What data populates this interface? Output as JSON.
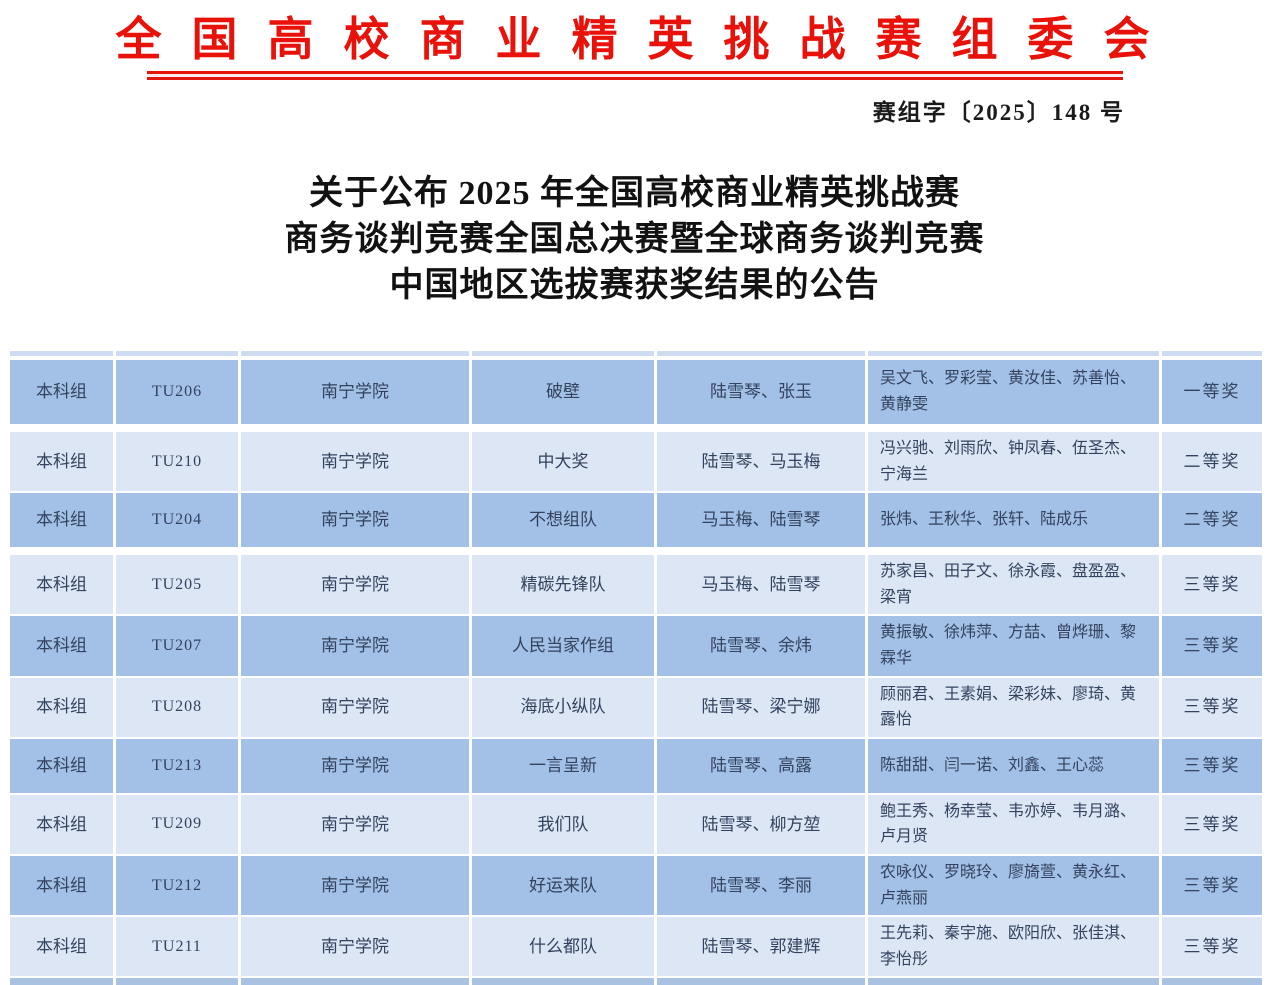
{
  "header": {
    "org_title": "全国高校商业精英挑战赛组委会",
    "doc_number": "赛组字〔2025〕148 号"
  },
  "announcement_title": {
    "lines": [
      "关于公布 2025 年全国高校商业精英挑战赛",
      "商务谈判竞赛全国总决赛暨全球商务谈判竞赛",
      "中国地区选拔赛获奖结果的公告"
    ]
  },
  "colors": {
    "accent_red": "#e8120a",
    "row_dark": "#a3c0e7",
    "row_light": "#dce6f5",
    "table_text": "#33425e"
  },
  "table": {
    "rows": [
      {
        "group": "本科组",
        "team_code": "TU206",
        "school": "南宁学院",
        "team_name": "破壁",
        "teachers": "陆雪琴、张玉",
        "members": "吴文飞、罗彩莹、黄汝佳、苏善怡、黄静雯",
        "award": "一等奖",
        "shade": "dark",
        "tall": true,
        "gap_after": true
      },
      {
        "group": "本科组",
        "team_code": "TU210",
        "school": "南宁学院",
        "team_name": "中大奖",
        "teachers": "陆雪琴、马玉梅",
        "members": "冯兴驰、刘雨欣、钟凤春、伍圣杰、宁海兰",
        "award": "二等奖",
        "shade": "light",
        "tall": false,
        "gap_after": false
      },
      {
        "group": "本科组",
        "team_code": "TU204",
        "school": "南宁学院",
        "team_name": "不想组队",
        "teachers": "马玉梅、陆雪琴",
        "members": "张炜、王秋华、张轩、陆成乐",
        "award": "二等奖",
        "shade": "dark",
        "tall": false,
        "gap_after": true
      },
      {
        "group": "本科组",
        "team_code": "TU205",
        "school": "南宁学院",
        "team_name": "精碳先锋队",
        "teachers": "马玉梅、陆雪琴",
        "members": "苏家昌、田子文、徐永霞、盘盈盈、梁宵",
        "award": "三等奖",
        "shade": "light",
        "tall": false,
        "gap_after": false
      },
      {
        "group": "本科组",
        "team_code": "TU207",
        "school": "南宁学院",
        "team_name": "人民当家作组",
        "teachers": "陆雪琴、余炜",
        "members": "黄振敏、徐炜萍、方喆、曾烨珊、黎霖华",
        "award": "三等奖",
        "shade": "dark",
        "tall": false,
        "gap_after": false
      },
      {
        "group": "本科组",
        "team_code": "TU208",
        "school": "南宁学院",
        "team_name": "海底小纵队",
        "teachers": "陆雪琴、梁宁娜",
        "members": "顾丽君、王素娟、梁彩妹、廖琦、黄露怡",
        "award": "三等奖",
        "shade": "light",
        "tall": false,
        "gap_after": false
      },
      {
        "group": "本科组",
        "team_code": "TU213",
        "school": "南宁学院",
        "team_name": "一言呈新",
        "teachers": "陆雪琴、高露",
        "members": "陈甜甜、闫一诺、刘鑫、王心蕊",
        "award": "三等奖",
        "shade": "dark",
        "tall": false,
        "gap_after": false
      },
      {
        "group": "本科组",
        "team_code": "TU209",
        "school": "南宁学院",
        "team_name": "我们队",
        "teachers": "陆雪琴、柳方堃",
        "members": "鲍王秀、杨幸莹、韦亦婷、韦月潞、卢月贤",
        "award": "三等奖",
        "shade": "light",
        "tall": false,
        "gap_after": false
      },
      {
        "group": "本科组",
        "team_code": "TU212",
        "school": "南宁学院",
        "team_name": "好运来队",
        "teachers": "陆雪琴、李丽",
        "members": "农咏仪、罗晓玲、廖旖萱、黄永红、卢燕丽",
        "award": "三等奖",
        "shade": "dark",
        "tall": false,
        "gap_after": false
      },
      {
        "group": "本科组",
        "team_code": "TU211",
        "school": "南宁学院",
        "team_name": "什么都队",
        "teachers": "陆雪琴、郭建辉",
        "members": "王先莉、秦宇施、欧阳欣、张佳淇、李怡彤",
        "award": "三等奖",
        "shade": "light",
        "tall": false,
        "gap_after": false
      }
    ]
  }
}
